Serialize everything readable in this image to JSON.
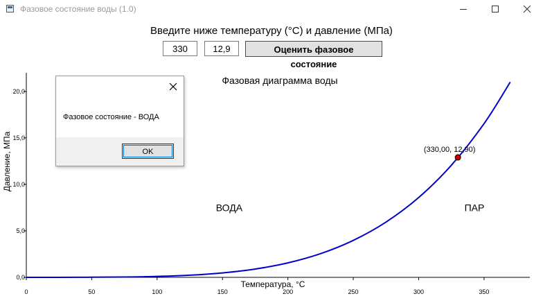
{
  "window": {
    "title": "Фазовое состояние воды (1.0)"
  },
  "form": {
    "prompt": "Введите ниже температуру (°C) и давление (МПа)",
    "temperature_value": "330",
    "pressure_value": "12,9",
    "evaluate_label": "Оценить фазовое состояние"
  },
  "dialog": {
    "message": "Фазовое состояние - ВОДА",
    "ok_label": "OK"
  },
  "chart_data": {
    "type": "line",
    "title": "Фазовая диаграмма воды",
    "xlabel": "Температура, °C",
    "ylabel": "Давление, МПа",
    "xlim": [
      0,
      385
    ],
    "ylim": [
      0,
      22
    ],
    "xticks": [
      0,
      50,
      100,
      150,
      200,
      250,
      300,
      350
    ],
    "xtick_labels": [
      "0",
      "50",
      "100",
      "150",
      "200",
      "250",
      "300",
      "350"
    ],
    "yticks": [
      0,
      5,
      10,
      15,
      20
    ],
    "ytick_labels": [
      "0,0",
      "5,0",
      "10,0",
      "15,0",
      "20,0"
    ],
    "series": [
      {
        "color": "#0000cc",
        "x": [
          0,
          25,
          50,
          75,
          100,
          125,
          150,
          175,
          200,
          225,
          250,
          275,
          300,
          325,
          350,
          370
        ],
        "y": [
          0.0006,
          0.0032,
          0.0124,
          0.0386,
          0.1013,
          0.232,
          0.476,
          0.892,
          1.555,
          2.548,
          3.976,
          5.942,
          8.587,
          12.06,
          16.53,
          21.0
        ]
      }
    ],
    "point": {
      "x": 330.0,
      "y": 12.9,
      "label": "(330,00, 12,90)",
      "color": "#cc0000"
    },
    "region_labels": {
      "water": "ВОДА",
      "steam": "ПАР"
    },
    "grid": false
  }
}
